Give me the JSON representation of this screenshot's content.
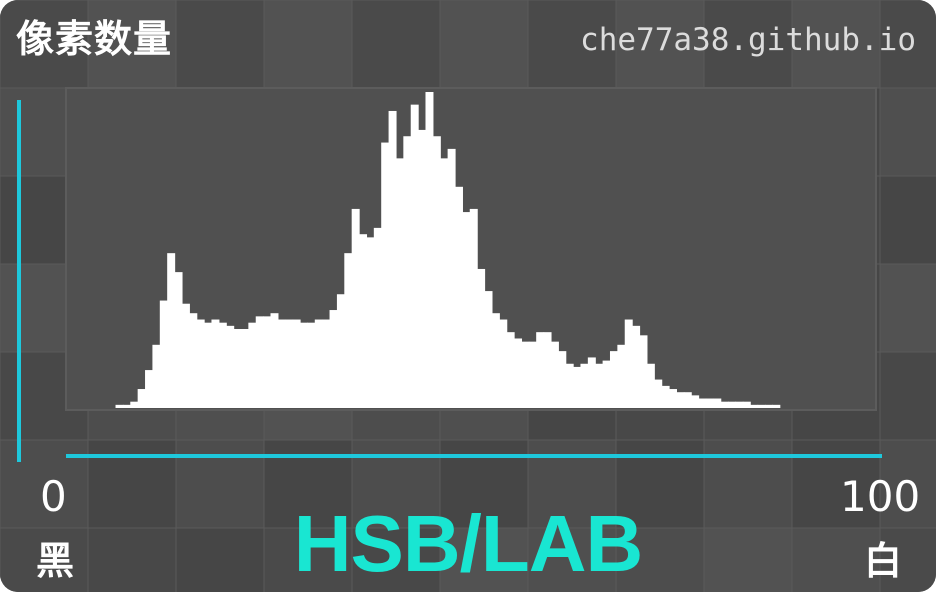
{
  "title": "像素数量",
  "watermark": "che77a38.github.io",
  "mode_label": "HSB/LAB",
  "colors": {
    "background": "#4b4b4b",
    "plot_background": "#505050",
    "bars": "#ffffff",
    "axis": "#1ec8dc",
    "accent": "#19e6d2"
  },
  "chart_data": {
    "type": "area",
    "title": "像素数量",
    "xlabel": "HSB/LAB",
    "ylabel": "",
    "xlim": [
      0,
      100
    ],
    "ylim": [
      0,
      1
    ],
    "x_tick_labels": [
      {
        "value": 0,
        "label": "0",
        "name": "黑"
      },
      {
        "value": 100,
        "label": "100",
        "name": "白"
      }
    ],
    "grid": true,
    "legend": "none",
    "bins": 100,
    "values": [
      0.0,
      0.0,
      0.0,
      0.0,
      0.01,
      0.01,
      0.02,
      0.06,
      0.12,
      0.2,
      0.34,
      0.49,
      0.43,
      0.33,
      0.3,
      0.28,
      0.27,
      0.28,
      0.27,
      0.26,
      0.25,
      0.25,
      0.27,
      0.29,
      0.29,
      0.3,
      0.28,
      0.28,
      0.28,
      0.27,
      0.27,
      0.28,
      0.28,
      0.31,
      0.36,
      0.49,
      0.63,
      0.55,
      0.54,
      0.57,
      0.84,
      0.94,
      0.79,
      0.86,
      0.96,
      0.88,
      1.0,
      0.86,
      0.79,
      0.82,
      0.7,
      0.62,
      0.63,
      0.44,
      0.37,
      0.3,
      0.28,
      0.24,
      0.22,
      0.21,
      0.21,
      0.24,
      0.24,
      0.21,
      0.18,
      0.14,
      0.13,
      0.14,
      0.16,
      0.14,
      0.15,
      0.18,
      0.2,
      0.28,
      0.26,
      0.23,
      0.14,
      0.09,
      0.07,
      0.06,
      0.05,
      0.05,
      0.04,
      0.03,
      0.03,
      0.03,
      0.02,
      0.02,
      0.02,
      0.02,
      0.01,
      0.01,
      0.01,
      0.01,
      0.0,
      0.0,
      0.0,
      0.0,
      0.0,
      0.0
    ]
  }
}
